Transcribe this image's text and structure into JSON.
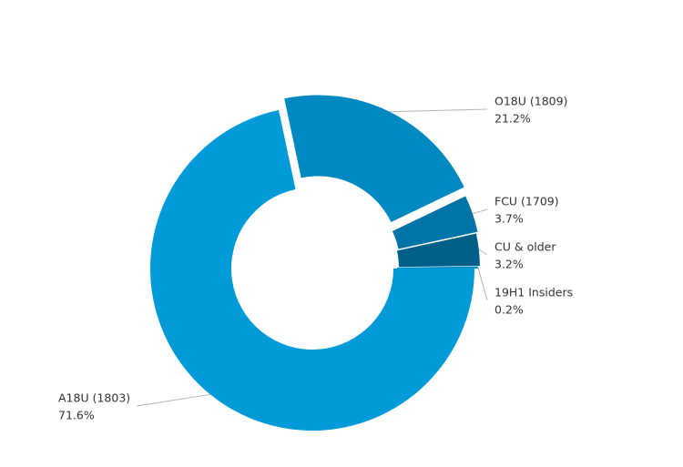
{
  "chart_data": {
    "type": "donut",
    "categories": [
      "A18U (1803)",
      "O18U (1809)",
      "FCU (1709)",
      "CU & older",
      "19H1 Insiders"
    ],
    "values": [
      71.6,
      21.2,
      3.7,
      3.2,
      0.2
    ],
    "value_labels": [
      "71.6%",
      "21.2%",
      "3.7%",
      "3.2%",
      "0.2%"
    ],
    "colors": [
      "#009ad8",
      "#0088c0",
      "#0074a6",
      "#005f88",
      "#0090c8"
    ]
  }
}
